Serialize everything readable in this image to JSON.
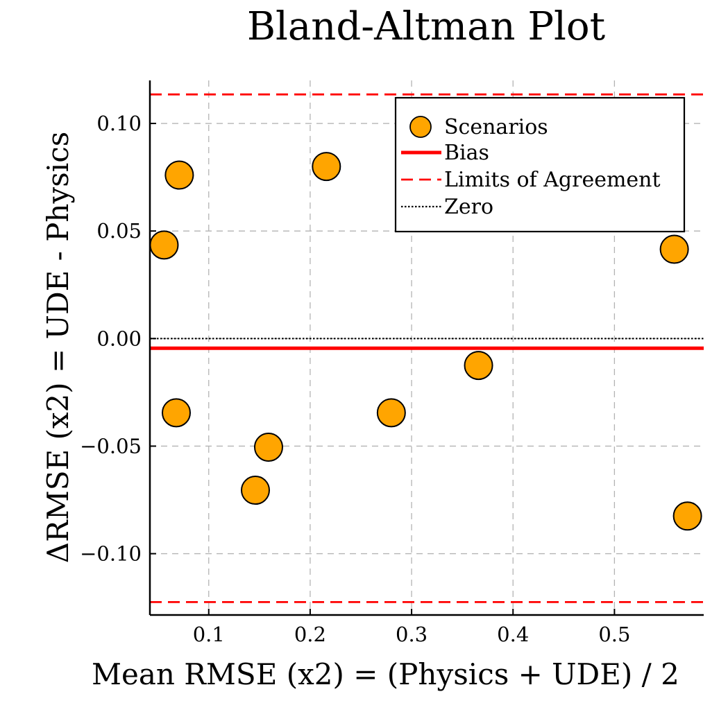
{
  "chart_data": {
    "type": "scatter",
    "title": "Bland-Altman Plot",
    "xlabel": "Mean RMSE (x2) = (Physics + UDE) / 2",
    "ylabel": "ΔRMSE (x2) = UDE - Physics",
    "xlim": [
      0.042,
      0.588
    ],
    "ylim": [
      -0.1285,
      0.12
    ],
    "xticks": [
      0.1,
      0.2,
      0.3,
      0.4,
      0.5
    ],
    "xtick_labels": [
      "0.1",
      "0.2",
      "0.3",
      "0.4",
      "0.5"
    ],
    "yticks": [
      0.1,
      0.05,
      0.0,
      -0.05,
      -0.1
    ],
    "ytick_labels": [
      "0.10",
      "0.05",
      "0.00",
      "−0.05",
      "−0.10"
    ],
    "grid": true,
    "legend_position": "top-right",
    "series": [
      {
        "name": "Scenarios",
        "kind": "points",
        "color": "#FFA500",
        "x": [
          0.056,
          0.071,
          0.068,
          0.146,
          0.159,
          0.216,
          0.28,
          0.366,
          0.559,
          0.572
        ],
        "y": [
          0.0435,
          0.076,
          -0.0345,
          -0.0705,
          -0.0505,
          0.08,
          -0.0345,
          -0.0125,
          0.0415,
          -0.0825
        ]
      },
      {
        "name": "Bias",
        "kind": "hline",
        "y": -0.0045,
        "color": "#FF0000",
        "style": "solid"
      },
      {
        "name": "Limits of Agreement",
        "kind": "hlines",
        "y": [
          0.1135,
          -0.1225
        ],
        "color": "#FF0000",
        "style": "dashed"
      },
      {
        "name": "Zero",
        "kind": "hline",
        "y": 0.0,
        "color": "#000000",
        "style": "dotted"
      }
    ]
  }
}
